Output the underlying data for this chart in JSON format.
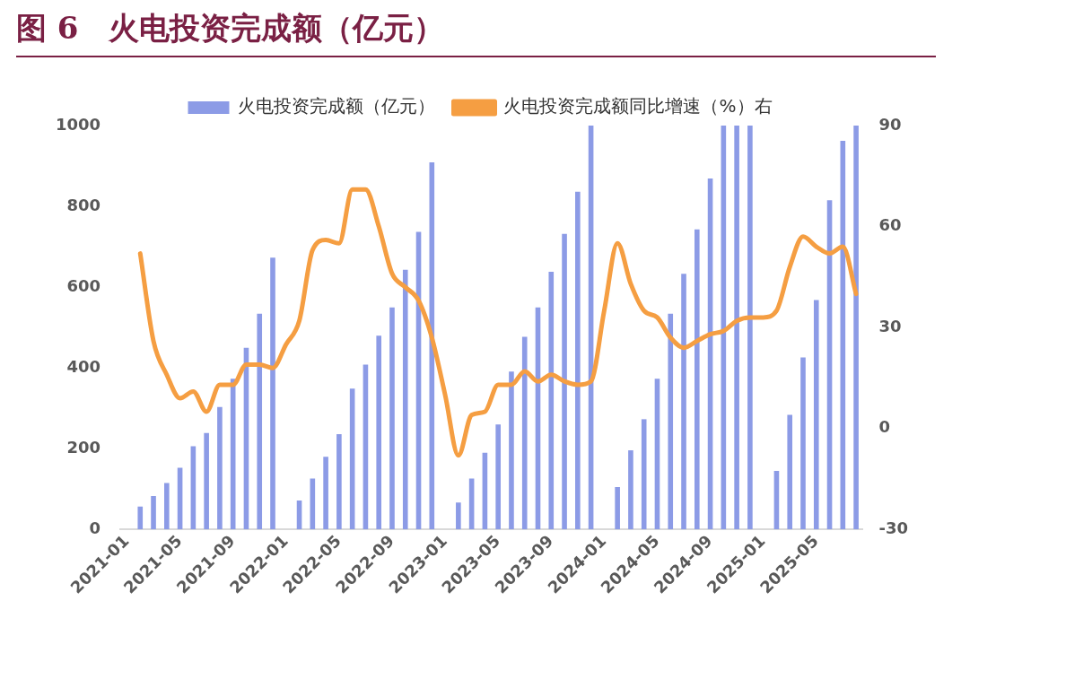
{
  "chart_data": {
    "type": "bar",
    "title": "图 6　火电投资完成额（亿元）",
    "categories": [
      "2021-01",
      null,
      null,
      null,
      "2021-05",
      null,
      null,
      null,
      "2021-09",
      null,
      null,
      null,
      "2022-01",
      null,
      null,
      null,
      "2022-05",
      null,
      null,
      null,
      "2022-09",
      null,
      null,
      null,
      "2023-01",
      null,
      null,
      null,
      "2023-05",
      null,
      null,
      null,
      "2023-09",
      null,
      null,
      null,
      "2024-01",
      null,
      null,
      null,
      "2024-05",
      null,
      null,
      null,
      "2024-09",
      null,
      null,
      null,
      "2025-01",
      null,
      null,
      null,
      "2025-05",
      null,
      null,
      null
    ],
    "series": [
      {
        "name": "火电投资完成额（亿元）",
        "color": "#8c9be6",
        "values": [
          null,
          57,
          83,
          115,
          153,
          206,
          239,
          303,
          373,
          450,
          534,
          673,
          null,
          72,
          126,
          180,
          236,
          349,
          408,
          480,
          550,
          643,
          737,
          909,
          null,
          67,
          126,
          190,
          260,
          391,
          477,
          550,
          638,
          732,
          836,
          1000,
          null,
          105,
          196,
          273,
          373,
          534,
          633,
          743,
          869,
          1000,
          1000,
          1000,
          null,
          145,
          284,
          426,
          568,
          815,
          962,
          1000
        ]
      },
      {
        "name": "火电投资完成额同比增速（%）右",
        "type": "line",
        "axis": "y2",
        "color": "#f59e42",
        "values": [
          null,
          52,
          26,
          16,
          9,
          11,
          5,
          13,
          13,
          19,
          19,
          18,
          25,
          32,
          53,
          56,
          55,
          71,
          71,
          60,
          46,
          42,
          38,
          27,
          10,
          -8,
          4,
          5,
          13,
          13,
          17,
          14,
          16,
          14,
          13,
          14,
          35,
          55,
          43,
          35,
          33,
          27,
          24,
          26,
          28,
          29,
          32,
          33,
          33,
          35,
          48,
          57,
          54,
          52,
          54,
          40
        ]
      }
    ],
    "ylim": [
      0,
      1000
    ],
    "yticks": [
      0,
      200,
      400,
      600,
      800,
      1000
    ],
    "y2lim": [
      -30,
      90
    ],
    "y2ticks": [
      -30,
      0,
      30,
      60,
      90
    ],
    "grid": false,
    "legend": "top",
    "marker": "none",
    "line_style": "solid"
  }
}
